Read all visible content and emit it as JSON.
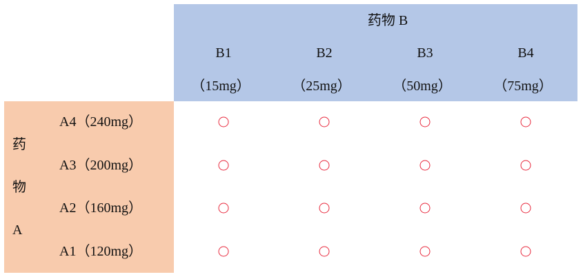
{
  "header": {
    "title": "药物 B"
  },
  "columns": [
    {
      "label": "B1",
      "dose": "（15mg）"
    },
    {
      "label": "B2",
      "dose": "（25mg）"
    },
    {
      "label": "B3",
      "dose": "（50mg）"
    },
    {
      "label": "B4",
      "dose": "（75mg）"
    }
  ],
  "row_group": {
    "chars": [
      "药",
      "物",
      "A"
    ]
  },
  "rows": [
    {
      "label": "A4（240mg）",
      "cells": [
        "○",
        "○",
        "○",
        "○"
      ]
    },
    {
      "label": "A3（200mg）",
      "cells": [
        "○",
        "○",
        "○",
        "○"
      ]
    },
    {
      "label": "A2（160mg）",
      "cells": [
        "○",
        "○",
        "○",
        "○"
      ]
    },
    {
      "label": "A1（120mg）",
      "cells": [
        "○",
        "○",
        "○",
        "○"
      ]
    }
  ],
  "colors": {
    "header_bg": "#b4c7e7",
    "row_header_bg": "#f8cbad",
    "marker": "#e8283c"
  }
}
